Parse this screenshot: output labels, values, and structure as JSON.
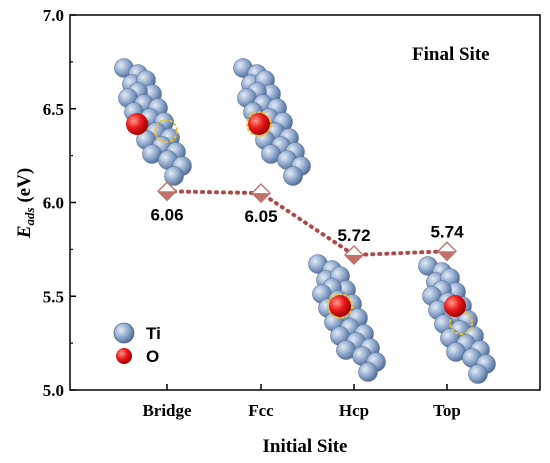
{
  "chart_data": {
    "type": "line",
    "categories": [
      "Bridge",
      "Fcc",
      "Hcp",
      "Top"
    ],
    "values": [
      6.06,
      6.05,
      5.72,
      5.74
    ],
    "data_labels": [
      "6.06",
      "6.05",
      "5.72",
      "5.74"
    ],
    "xlabel": "Initial Site",
    "ylabel_main": "E",
    "ylabel_sub": "ads",
    "ylabel_unit": " (eV)",
    "ylim": [
      5.0,
      7.0
    ],
    "yticks": [
      "5.0",
      "5.5",
      "6.0",
      "6.5",
      "7.0"
    ],
    "annotation": "Final Site",
    "legend": [
      {
        "name": "Ti",
        "color": "#8aa3c8"
      },
      {
        "name": "O",
        "color": "#e8191a"
      }
    ],
    "marker_color": "#c4706a",
    "line_color": "#b0474a",
    "line_style": "dotted",
    "marker": "diamond",
    "grid": false,
    "legend_position": "bottom-left"
  }
}
